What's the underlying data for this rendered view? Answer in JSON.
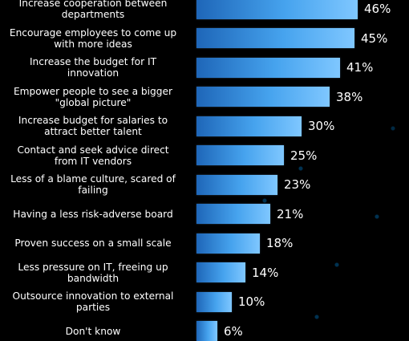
{
  "chart_data": {
    "type": "bar",
    "orientation": "horizontal",
    "categories": [
      "Increase cooperation between\ndepartments",
      "Encourage employees to come up\nwith more ideas",
      "Increase the budget for IT\ninnovation",
      "Empower people to see a bigger\n\"global picture\"",
      "Increase budget for salaries to\nattract better talent",
      "Contact and seek advice direct\nfrom IT vendors",
      "Less of a blame culture, scared of\nfailing",
      "Having a less risk-adverse board",
      "Proven success on a small scale",
      "Less pressure on IT, freeing up\nbandwidth",
      "Outsource innovation to external\nparties",
      "Don't know"
    ],
    "values": [
      46,
      45,
      41,
      38,
      30,
      25,
      23,
      21,
      18,
      14,
      10,
      6
    ],
    "value_labels": [
      "46%",
      "45%",
      "41%",
      "38%",
      "30%",
      "25%",
      "23%",
      "21%",
      "18%",
      "14%",
      "10%",
      "6%"
    ],
    "unit": "%",
    "xlim": [
      0,
      46
    ],
    "grid": false,
    "legend": "none",
    "bar_color_start": "#1e66b8",
    "bar_color_end": "#7fc7ff",
    "background_color": "#000000",
    "text_color": "#ffffff"
  }
}
